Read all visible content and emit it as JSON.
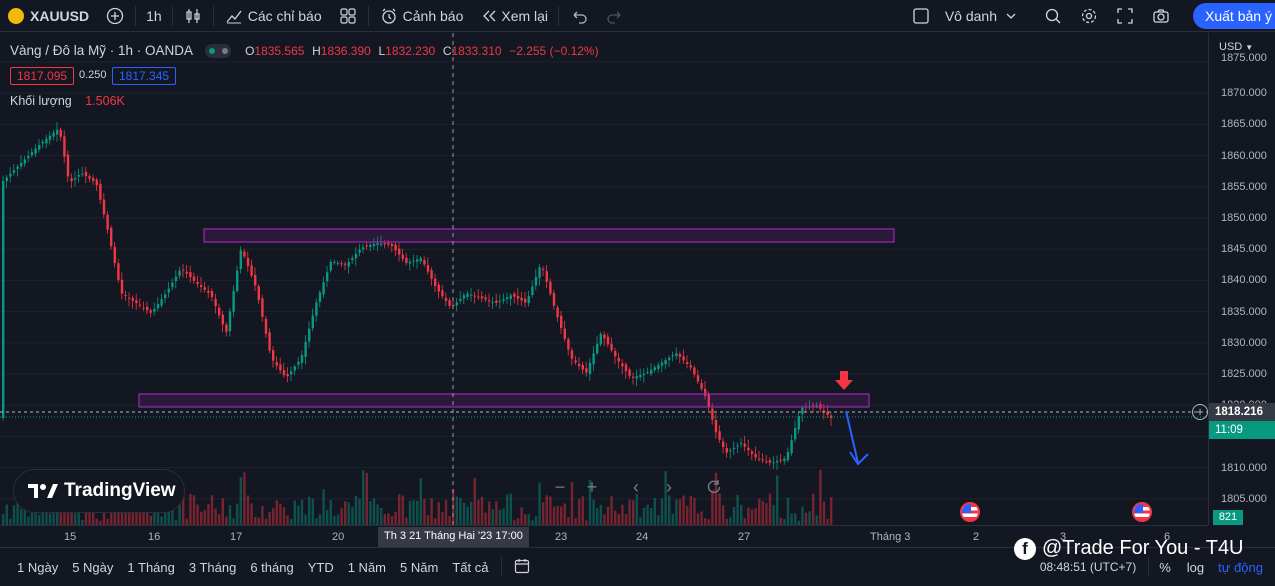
{
  "toolbar": {
    "symbol": "XAUUSD",
    "interval": "1h",
    "indicators_label": "Các chỉ báo",
    "alerts_label": "Cảnh báo",
    "replay_label": "Xem lại",
    "layout_name": "Vô danh",
    "publish_label": "Xuất bản ý tư"
  },
  "legend": {
    "title": "Vàng / Đô la Mỹ · 1h · OANDA",
    "o_label": "O",
    "o_value": "1835.565",
    "h_label": "H",
    "h_value": "1836.390",
    "l_label": "L",
    "l_value": "1832.230",
    "c_label": "C",
    "c_value": "1833.310",
    "change": "−2.255 (−0.12%)",
    "sell_price": "1817.095",
    "spread": "0.250",
    "buy_price": "1817.345",
    "volume_label": "Khối lượng",
    "volume_value": "1.506K"
  },
  "price_axis": {
    "currency": "USD",
    "ticks": [
      "1875.000",
      "1870.000",
      "1865.000",
      "1860.000",
      "1855.000",
      "1850.000",
      "1845.000",
      "1840.000",
      "1835.000",
      "1830.000",
      "1825.000",
      "1820.000",
      "1815.000",
      "1810.000",
      "1805.000"
    ],
    "current_price": "1818.216",
    "countdown": "11:09",
    "volume_badge": "821"
  },
  "time_axis": {
    "ticks": [
      "15",
      "16",
      "17",
      "20",
      "21",
      "23",
      "24",
      "27",
      "Tháng 3",
      "2",
      "3",
      "6"
    ],
    "crosshair_label": "Th 3 21 Tháng Hai '23   17:00"
  },
  "watermark": {
    "brand": "TradingView"
  },
  "bottom": {
    "ranges": [
      "1 Ngày",
      "5 Ngày",
      "1 Tháng",
      "3 Tháng",
      "6 tháng",
      "YTD",
      "1 Năm",
      "5 Năm",
      "Tất cả"
    ],
    "clock": "08:48:51 (UTC+7)",
    "percent_label": "%",
    "log_label": "log",
    "auto_label": "tự động",
    "overlay_text": "@Trade For You - T4U"
  },
  "colors": {
    "up": "#089981",
    "down": "#f23645",
    "zone_fill": "#9c27b0",
    "accent": "#2962ff",
    "arrow_red": "#f23645",
    "arrow_blue": "#2962ff"
  }
}
